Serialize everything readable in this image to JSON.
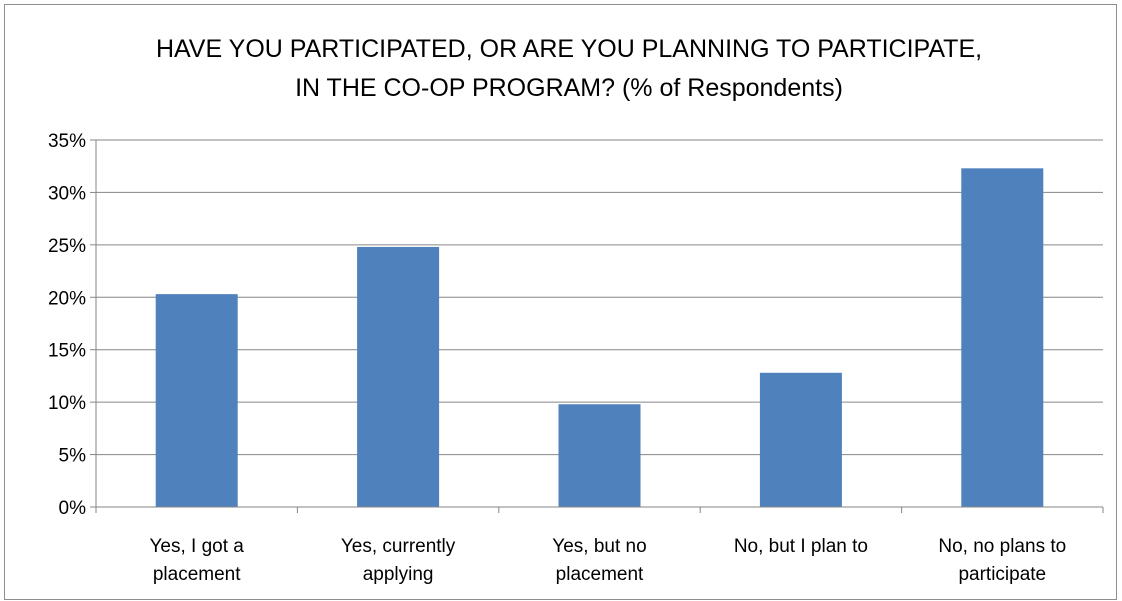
{
  "chart_data": {
    "type": "bar",
    "title_lines": [
      "HAVE YOU PARTICIPATED, OR ARE YOU PLANNING TO PARTICIPATE,",
      "IN THE CO-OP PROGRAM? (% of Respondents)"
    ],
    "categories": [
      [
        "Yes, I got a",
        "placement"
      ],
      [
        "Yes, currently",
        "applying"
      ],
      [
        "Yes, but no",
        "placement"
      ],
      [
        "No, but I plan to"
      ],
      [
        "No, no plans to",
        "participate"
      ]
    ],
    "values": [
      20.3,
      24.8,
      9.8,
      12.8,
      32.3
    ],
    "ylim": [
      0,
      35
    ],
    "yticks": [
      0,
      5,
      10,
      15,
      20,
      25,
      30,
      35
    ],
    "ytick_labels": [
      "0%",
      "5%",
      "10%",
      "15%",
      "20%",
      "25%",
      "30%",
      "35%"
    ],
    "grid": true,
    "legend": "none",
    "bar_color": "#4f81bd",
    "grid_color": "#868686"
  }
}
